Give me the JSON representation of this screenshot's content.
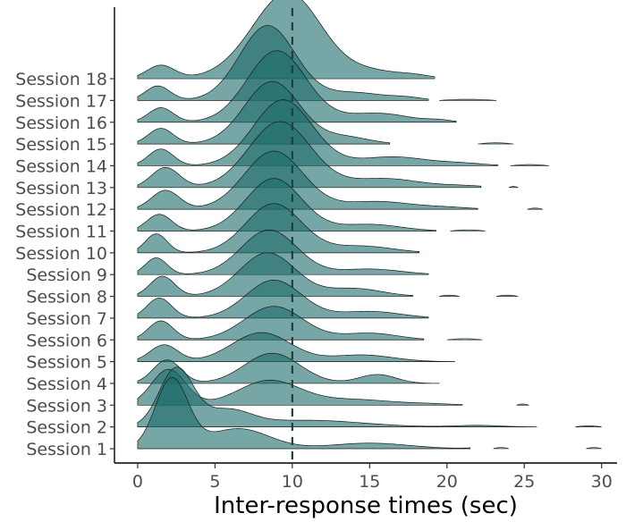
{
  "chart_data": {
    "type": "ridgeline",
    "title": "",
    "xlabel": "Inter-response times (sec)",
    "ylabel": "",
    "xlim": [
      -1.5,
      31.0
    ],
    "x_ticks": [
      0,
      5,
      10,
      15,
      20,
      25,
      30
    ],
    "x_tick_labels": [
      "0",
      "5",
      "10",
      "15",
      "20",
      "25",
      "30"
    ],
    "reference_line_x": 10,
    "fill_color": "#1d6b6b",
    "fill_opacity": 0.6,
    "line_color": "#1a1a1a",
    "grid": false,
    "categories": [
      "Session 1",
      "Session 2",
      "Session 3",
      "Session 4",
      "Session 5",
      "Session 6",
      "Session 7",
      "Session 8",
      "Session 9",
      "Session 10",
      "Session 11",
      "Session 12",
      "Session 13",
      "Session 14",
      "Session 15",
      "Session 16",
      "Session 17",
      "Session 18"
    ],
    "series": [
      {
        "label": "Session 1",
        "max_x": 21.5,
        "comps": [
          [
            2.2,
            1.05,
            3.1
          ],
          [
            6.5,
            2.0,
            0.9
          ],
          [
            15,
            2.5,
            0.25
          ],
          [
            22.3,
            0.8,
            0.05
          ]
        ],
        "islands": [
          [
            23,
            24
          ],
          [
            29,
            30
          ]
        ]
      },
      {
        "label": "Session 2",
        "max_x": 25.8,
        "comps": [
          [
            2.5,
            1.1,
            2.6
          ],
          [
            5.8,
            1.5,
            0.7
          ],
          [
            11,
            3.5,
            0.3
          ],
          [
            22,
            1.5,
            0.07
          ]
        ],
        "islands": [
          [
            28.3,
            30
          ]
        ]
      },
      {
        "label": "Session 3",
        "max_x": 21.0,
        "comps": [
          [
            2.0,
            1.1,
            1.6
          ],
          [
            8.5,
            2.0,
            1.1
          ],
          [
            14,
            2.5,
            0.25
          ],
          [
            19,
            1.5,
            0.05
          ]
        ],
        "islands": [
          [
            24.5,
            25.3
          ]
        ]
      },
      {
        "label": "Session 4",
        "max_x": 19.5,
        "comps": [
          [
            1.9,
            0.9,
            1.05
          ],
          [
            8.7,
            1.8,
            1.35
          ],
          [
            15.5,
            1.2,
            0.4
          ]
        ],
        "islands": []
      },
      {
        "label": "Session 5",
        "max_x": 20.5,
        "comps": [
          [
            1.7,
            0.9,
            0.75
          ],
          [
            8.0,
            1.9,
            1.3
          ],
          [
            14.5,
            2.0,
            0.3
          ]
        ],
        "islands": []
      },
      {
        "label": "Session 6",
        "max_x": 18.5,
        "comps": [
          [
            1.5,
            0.8,
            0.85
          ],
          [
            8.8,
            1.9,
            1.5
          ],
          [
            15,
            1.8,
            0.3
          ]
        ],
        "islands": [
          [
            20,
            22.3
          ]
        ]
      },
      {
        "label": "Session 7",
        "max_x": 18.8,
        "comps": [
          [
            1.4,
            0.8,
            0.9
          ],
          [
            8.8,
            1.8,
            1.7
          ],
          [
            15,
            2.0,
            0.3
          ]
        ],
        "islands": []
      },
      {
        "label": "Session 8",
        "max_x": 17.8,
        "comps": [
          [
            1.6,
            0.8,
            0.9
          ],
          [
            8.4,
            1.8,
            1.95
          ],
          [
            14,
            1.8,
            0.35
          ]
        ],
        "islands": [
          [
            19.5,
            20.8
          ],
          [
            23.2,
            24.6
          ]
        ]
      },
      {
        "label": "Session 9",
        "max_x": 18.8,
        "comps": [
          [
            1.2,
            0.7,
            0.75
          ],
          [
            8.5,
            1.8,
            2.0
          ],
          [
            15,
            2.0,
            0.25
          ]
        ],
        "islands": []
      },
      {
        "label": "Session 10",
        "max_x": 18.2,
        "comps": [
          [
            1.2,
            0.7,
            0.85
          ],
          [
            8.8,
            1.8,
            2.2
          ],
          [
            14.5,
            2.0,
            0.3
          ]
        ],
        "islands": []
      },
      {
        "label": "Session 11",
        "max_x": 19.3,
        "comps": [
          [
            1.4,
            0.8,
            0.75
          ],
          [
            8.8,
            1.8,
            2.35
          ],
          [
            15,
            2.0,
            0.3
          ]
        ],
        "islands": [
          [
            20.2,
            22.5
          ]
        ]
      },
      {
        "label": "Session 12",
        "max_x": 22.0,
        "comps": [
          [
            1.8,
            0.9,
            0.85
          ],
          [
            8.8,
            1.9,
            2.6
          ],
          [
            15.5,
            2.2,
            0.35
          ],
          [
            20,
            1.5,
            0.08
          ]
        ],
        "islands": [
          [
            25.2,
            26.2
          ]
        ]
      },
      {
        "label": "Session 13",
        "max_x": 22.2,
        "comps": [
          [
            1.8,
            0.9,
            0.9
          ],
          [
            9.2,
            2.0,
            2.95
          ],
          [
            16,
            2.2,
            0.4
          ],
          [
            21,
            1.5,
            0.08
          ]
        ],
        "islands": [
          [
            24,
            24.6
          ]
        ]
      },
      {
        "label": "Session 14",
        "max_x": 23.3,
        "comps": [
          [
            1.5,
            0.8,
            0.75
          ],
          [
            9.4,
            1.9,
            2.95
          ],
          [
            16.5,
            2.2,
            0.4
          ],
          [
            21,
            1.5,
            0.1
          ]
        ],
        "islands": [
          [
            24.1,
            26.6
          ]
        ]
      },
      {
        "label": "Session 15",
        "max_x": 16.3,
        "comps": [
          [
            1.5,
            0.8,
            0.7
          ],
          [
            8.7,
            1.8,
            2.8
          ],
          [
            13.5,
            1.5,
            0.3
          ]
        ],
        "islands": [
          [
            22,
            24.3
          ]
        ]
      },
      {
        "label": "Session 16",
        "max_x": 20.6,
        "comps": [
          [
            1.5,
            0.8,
            0.65
          ],
          [
            9.0,
            1.9,
            3.2
          ],
          [
            15.5,
            2.0,
            0.4
          ],
          [
            19.5,
            0.8,
            0.08
          ]
        ],
        "islands": []
      },
      {
        "label": "Session 17",
        "max_x": 18.8,
        "comps": [
          [
            1.3,
            0.8,
            0.65
          ],
          [
            8.4,
            1.8,
            3.35
          ],
          [
            14,
            2.0,
            0.35
          ],
          [
            17.5,
            1.0,
            0.1
          ]
        ],
        "islands": [
          [
            19.5,
            23.2
          ]
        ]
      },
      {
        "label": "Session 18",
        "max_x": 19.2,
        "comps": [
          [
            1.5,
            0.9,
            0.6
          ],
          [
            8.6,
            2.2,
            1.6
          ],
          [
            10.2,
            2.0,
            2.5
          ],
          [
            15,
            2.0,
            0.35
          ],
          [
            18,
            1.0,
            0.1
          ]
        ],
        "islands": []
      }
    ]
  }
}
